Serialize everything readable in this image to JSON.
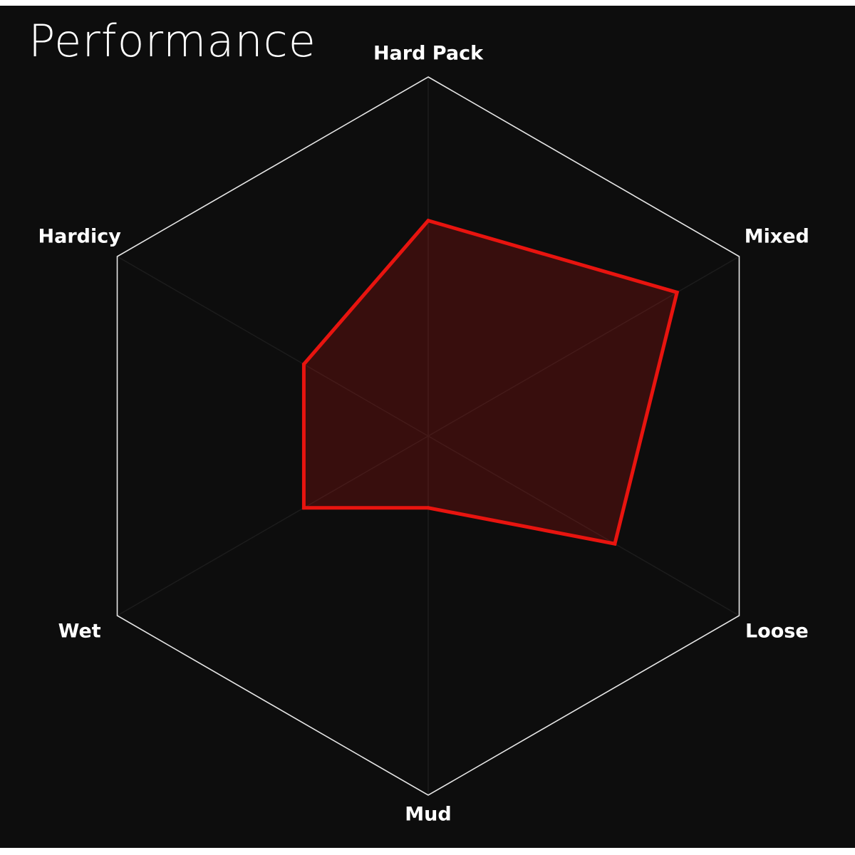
{
  "chart_data": {
    "type": "radar",
    "title": "Performance",
    "categories": [
      "Hard Pack",
      "Mixed",
      "Loose",
      "Mud",
      "Wet",
      "Hardicy"
    ],
    "values": [
      60,
      80,
      60,
      20,
      40,
      40
    ],
    "color": "#e8140f",
    "rlim": [
      0,
      100
    ]
  }
}
